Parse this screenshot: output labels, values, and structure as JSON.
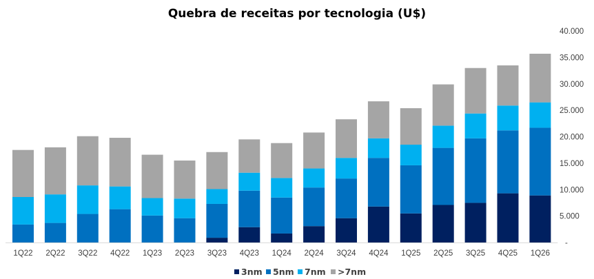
{
  "chart_data": {
    "type": "bar",
    "stacked": true,
    "title": "Quebra de receitas por tecnologia (U$)",
    "xlabel": "",
    "ylabel": "",
    "ylim": [
      0,
      40000
    ],
    "yticks": [
      0,
      5000,
      10000,
      15000,
      20000,
      25000,
      30000,
      35000,
      40000
    ],
    "ytick_labels": [
      "-",
      "5.000",
      "10.000",
      "15.000",
      "20.000",
      "25.000",
      "30.000",
      "35.000",
      "40.000"
    ],
    "y_axis_side": "right",
    "grid": false,
    "legend_position": "bottom",
    "categories": [
      "1Q22",
      "2Q22",
      "3Q22",
      "4Q22",
      "1Q23",
      "2Q23",
      "3Q23",
      "4Q23",
      "1Q24",
      "2Q24",
      "3Q24",
      "4Q24",
      "1Q25",
      "2Q25",
      "3Q25",
      "4Q25",
      "1Q26"
    ],
    "series": [
      {
        "name": "3nm",
        "color": "#002060",
        "values": [
          0,
          0,
          0,
          0,
          0,
          0,
          900,
          2900,
          1700,
          3100,
          4600,
          6800,
          5500,
          7100,
          7500,
          9300,
          8900
        ]
      },
      {
        "name": "5nm",
        "color": "#0070C0",
        "values": [
          3400,
          3700,
          5400,
          6300,
          5100,
          4600,
          6400,
          6900,
          6800,
          7300,
          7500,
          9200,
          9100,
          10800,
          12200,
          11900,
          12800
        ]
      },
      {
        "name": "7nm",
        "color": "#00B0F0",
        "values": [
          5200,
          5400,
          5400,
          4300,
          3300,
          3700,
          2800,
          3400,
          3700,
          3600,
          3900,
          3700,
          3900,
          4200,
          4700,
          4700,
          4800
        ]
      },
      {
        "name": ">7nm",
        "color": "#A5A5A5",
        "values": [
          8900,
          8900,
          9300,
          9200,
          8200,
          7200,
          7000,
          6300,
          6600,
          6800,
          7300,
          7000,
          6900,
          7800,
          8600,
          7600,
          9200
        ]
      }
    ]
  }
}
